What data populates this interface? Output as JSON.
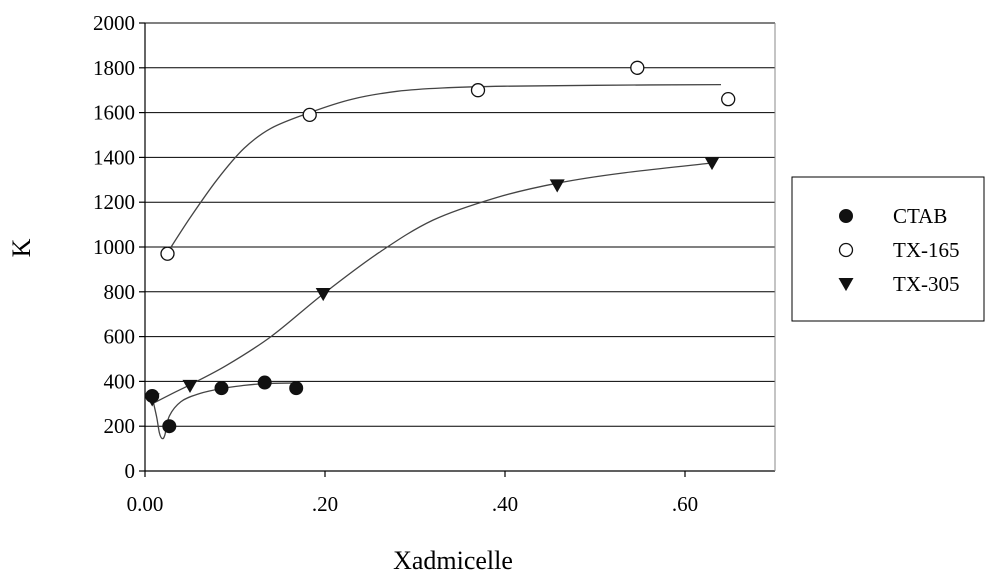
{
  "chart_data": {
    "type": "scatter",
    "title": "",
    "xlabel": "Xadmicelle",
    "ylabel": "K",
    "xlim": [
      0,
      0.7
    ],
    "ylim": [
      0,
      2000
    ],
    "x_ticks": [
      {
        "value": 0,
        "label": "0.00"
      },
      {
        "value": 0.2,
        "label": ".20"
      },
      {
        "value": 0.4,
        "label": ".40"
      },
      {
        "value": 0.6,
        "label": ".60"
      }
    ],
    "y_ticks": [
      {
        "value": 0,
        "label": "0"
      },
      {
        "value": 200,
        "label": "200"
      },
      {
        "value": 400,
        "label": "400"
      },
      {
        "value": 600,
        "label": "600"
      },
      {
        "value": 800,
        "label": "800"
      },
      {
        "value": 1000,
        "label": "1000"
      },
      {
        "value": 1200,
        "label": "1200"
      },
      {
        "value": 1400,
        "label": "1400"
      },
      {
        "value": 1600,
        "label": "1600"
      },
      {
        "value": 1800,
        "label": "1800"
      },
      {
        "value": 2000,
        "label": "2000"
      }
    ],
    "grid": "horizontal",
    "legend_position": "right",
    "series": [
      {
        "name": "CTAB",
        "marker": "filled-circle",
        "points": [
          [
            0.008,
            335
          ],
          [
            0.027,
            200
          ],
          [
            0.085,
            370
          ],
          [
            0.133,
            395
          ],
          [
            0.168,
            370
          ]
        ],
        "trend": [
          [
            0.008,
            330
          ],
          [
            0.013,
            240
          ],
          [
            0.016,
            170
          ],
          [
            0.019,
            145
          ],
          [
            0.022,
            160
          ],
          [
            0.027,
            245
          ],
          [
            0.04,
            310
          ],
          [
            0.06,
            345
          ],
          [
            0.085,
            368
          ],
          [
            0.11,
            382
          ],
          [
            0.133,
            390
          ],
          [
            0.168,
            393
          ]
        ]
      },
      {
        "name": "TX-165",
        "marker": "open-circle",
        "points": [
          [
            0.025,
            970
          ],
          [
            0.183,
            1590
          ],
          [
            0.37,
            1700
          ],
          [
            0.547,
            1800
          ],
          [
            0.648,
            1660
          ]
        ],
        "trend": [
          [
            0.025,
            975
          ],
          [
            0.05,
            1130
          ],
          [
            0.08,
            1300
          ],
          [
            0.11,
            1440
          ],
          [
            0.14,
            1530
          ],
          [
            0.183,
            1600
          ],
          [
            0.23,
            1660
          ],
          [
            0.28,
            1695
          ],
          [
            0.33,
            1710
          ],
          [
            0.4,
            1718
          ],
          [
            0.5,
            1722
          ],
          [
            0.64,
            1725
          ]
        ]
      },
      {
        "name": "TX-305",
        "marker": "filled-triangle-down",
        "points": [
          [
            0.008,
            320
          ],
          [
            0.05,
            380
          ],
          [
            0.198,
            790
          ],
          [
            0.458,
            1275
          ],
          [
            0.63,
            1375
          ]
        ],
        "trend": [
          [
            0.008,
            300
          ],
          [
            0.03,
            345
          ],
          [
            0.05,
            385
          ],
          [
            0.09,
            470
          ],
          [
            0.14,
            600
          ],
          [
            0.198,
            790
          ],
          [
            0.26,
            975
          ],
          [
            0.32,
            1120
          ],
          [
            0.39,
            1220
          ],
          [
            0.458,
            1285
          ],
          [
            0.53,
            1330
          ],
          [
            0.63,
            1375
          ]
        ]
      }
    ]
  }
}
